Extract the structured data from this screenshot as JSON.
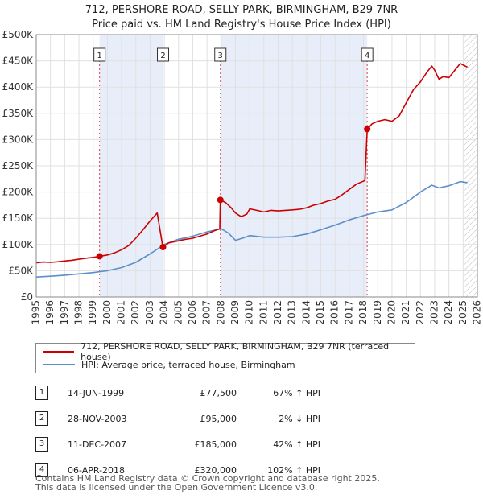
{
  "header": {
    "title_line1": "712, PERSHORE ROAD, SELLY PARK, BIRMINGHAM, B29 7NR",
    "title_line2": "Price paid vs. HM Land Registry's House Price Index (HPI)"
  },
  "legend": {
    "items": [
      {
        "label": "712, PERSHORE ROAD, SELLY PARK, BIRMINGHAM, B29 7NR (terraced house)",
        "color": "#cc0000"
      },
      {
        "label": "HPI: Average price, terraced house, Birmingham",
        "color": "#5b8fc9"
      }
    ]
  },
  "sales": [
    {
      "num": "1",
      "date": "14-JUN-1999",
      "price": "£77,500",
      "hpi": "67% ↑ HPI"
    },
    {
      "num": "2",
      "date": "28-NOV-2003",
      "price": "£95,000",
      "hpi": "2% ↓ HPI"
    },
    {
      "num": "3",
      "date": "11-DEC-2007",
      "price": "£185,000",
      "hpi": "42% ↑ HPI"
    },
    {
      "num": "4",
      "date": "06-APR-2018",
      "price": "£320,000",
      "hpi": "102% ↑ HPI"
    }
  ],
  "footer": {
    "line1": "Contains HM Land Registry data © Crown copyright and database right 2025.",
    "line2": "This data is licensed under the Open Government Licence v3.0."
  },
  "chart_data": {
    "type": "line",
    "title": "712, PERSHORE ROAD, SELLY PARK, BIRMINGHAM, B29 7NR — Price paid vs. HM Land Registry's House Price Index (HPI)",
    "xlim": [
      1995,
      2026
    ],
    "ylim": [
      0,
      500000
    ],
    "x_ticks": [
      1995,
      1996,
      1997,
      1998,
      1999,
      2000,
      2001,
      2002,
      2003,
      2004,
      2005,
      2006,
      2007,
      2008,
      2009,
      2010,
      2011,
      2012,
      2013,
      2014,
      2015,
      2016,
      2017,
      2018,
      2019,
      2020,
      2021,
      2022,
      2023,
      2024,
      2025,
      2026
    ],
    "y_ticks": [
      {
        "value": 0,
        "label": "£0"
      },
      {
        "value": 50000,
        "label": "£50K"
      },
      {
        "value": 100000,
        "label": "£100K"
      },
      {
        "value": 150000,
        "label": "£150K"
      },
      {
        "value": 200000,
        "label": "£200K"
      },
      {
        "value": 250000,
        "label": "£250K"
      },
      {
        "value": 300000,
        "label": "£300K"
      },
      {
        "value": 350000,
        "label": "£350K"
      },
      {
        "value": 400000,
        "label": "£400K"
      },
      {
        "value": 450000,
        "label": "£450K"
      },
      {
        "value": 500000,
        "label": "£500K"
      }
    ],
    "shaded_spans": [
      [
        1999.45,
        2003.91
      ],
      [
        2007.94,
        2018.26
      ]
    ],
    "future_hatch_from": 2025.1,
    "sale_markers": [
      {
        "label": "1",
        "x": 1999.45,
        "y": 77500
      },
      {
        "label": "2",
        "x": 2003.91,
        "y": 95000
      },
      {
        "label": "3",
        "x": 2007.94,
        "y": 185000
      },
      {
        "label": "4",
        "x": 2018.26,
        "y": 320000
      }
    ],
    "series": [
      {
        "name": "712, PERSHORE ROAD, SELLY PARK, BIRMINGHAM, B29 7NR (terraced house)",
        "color": "#cc0000",
        "points": [
          [
            1995,
            65000
          ],
          [
            1995.5,
            66500
          ],
          [
            1996,
            66000
          ],
          [
            1996.5,
            67000
          ],
          [
            1997,
            68500
          ],
          [
            1997.5,
            70000
          ],
          [
            1998,
            72000
          ],
          [
            1998.5,
            74000
          ],
          [
            1999,
            75500
          ],
          [
            1999.45,
            77500
          ],
          [
            2000,
            80000
          ],
          [
            2000.5,
            84000
          ],
          [
            2001,
            90000
          ],
          [
            2001.5,
            98000
          ],
          [
            2002,
            112000
          ],
          [
            2002.5,
            128000
          ],
          [
            2003,
            145000
          ],
          [
            2003.5,
            160000
          ],
          [
            2003.9,
            95000
          ],
          [
            2004.3,
            103000
          ],
          [
            2005,
            107000
          ],
          [
            2005.5,
            110000
          ],
          [
            2006,
            112000
          ],
          [
            2006.5,
            116000
          ],
          [
            2007,
            120000
          ],
          [
            2007.5,
            126000
          ],
          [
            2007.9,
            130000
          ],
          [
            2007.94,
            185000
          ],
          [
            2008.3,
            180000
          ],
          [
            2008.7,
            170000
          ],
          [
            2009,
            160000
          ],
          [
            2009.4,
            153000
          ],
          [
            2009.8,
            158000
          ],
          [
            2010,
            168000
          ],
          [
            2010.5,
            165000
          ],
          [
            2011,
            162000
          ],
          [
            2011.5,
            165000
          ],
          [
            2012,
            164000
          ],
          [
            2012.5,
            165000
          ],
          [
            2013,
            166000
          ],
          [
            2013.5,
            167000
          ],
          [
            2014,
            170000
          ],
          [
            2014.5,
            175000
          ],
          [
            2015,
            178000
          ],
          [
            2015.5,
            183000
          ],
          [
            2016,
            186000
          ],
          [
            2016.5,
            195000
          ],
          [
            2017,
            205000
          ],
          [
            2017.5,
            215000
          ],
          [
            2018.1,
            222000
          ],
          [
            2018.26,
            320000
          ],
          [
            2018.6,
            330000
          ],
          [
            2019,
            335000
          ],
          [
            2019.5,
            338000
          ],
          [
            2020,
            335000
          ],
          [
            2020.5,
            345000
          ],
          [
            2021,
            370000
          ],
          [
            2021.5,
            395000
          ],
          [
            2022,
            410000
          ],
          [
            2022.5,
            430000
          ],
          [
            2022.8,
            440000
          ],
          [
            2023,
            432000
          ],
          [
            2023.3,
            415000
          ],
          [
            2023.6,
            420000
          ],
          [
            2024,
            418000
          ],
          [
            2024.5,
            435000
          ],
          [
            2024.8,
            445000
          ],
          [
            2025,
            442000
          ],
          [
            2025.3,
            438000
          ]
        ]
      },
      {
        "name": "HPI: Average price, terraced house, Birmingham",
        "color": "#5b8fc9",
        "points": [
          [
            1995,
            38000
          ],
          [
            1996,
            39500
          ],
          [
            1997,
            41500
          ],
          [
            1998,
            44000
          ],
          [
            1999,
            46500
          ],
          [
            2000,
            50000
          ],
          [
            2001,
            56000
          ],
          [
            2002,
            66000
          ],
          [
            2003,
            82000
          ],
          [
            2004,
            100000
          ],
          [
            2005,
            110000
          ],
          [
            2006,
            116000
          ],
          [
            2007,
            124000
          ],
          [
            2008,
            130000
          ],
          [
            2008.5,
            122000
          ],
          [
            2009,
            108000
          ],
          [
            2009.5,
            112000
          ],
          [
            2010,
            117000
          ],
          [
            2011,
            114000
          ],
          [
            2012,
            114000
          ],
          [
            2013,
            115000
          ],
          [
            2014,
            120000
          ],
          [
            2015,
            128000
          ],
          [
            2016,
            137000
          ],
          [
            2017,
            147000
          ],
          [
            2018,
            155000
          ],
          [
            2019,
            162000
          ],
          [
            2020,
            166000
          ],
          [
            2021,
            180000
          ],
          [
            2022,
            200000
          ],
          [
            2022.8,
            213000
          ],
          [
            2023.3,
            208000
          ],
          [
            2024,
            212000
          ],
          [
            2024.8,
            220000
          ],
          [
            2025.3,
            218000
          ]
        ]
      }
    ]
  }
}
